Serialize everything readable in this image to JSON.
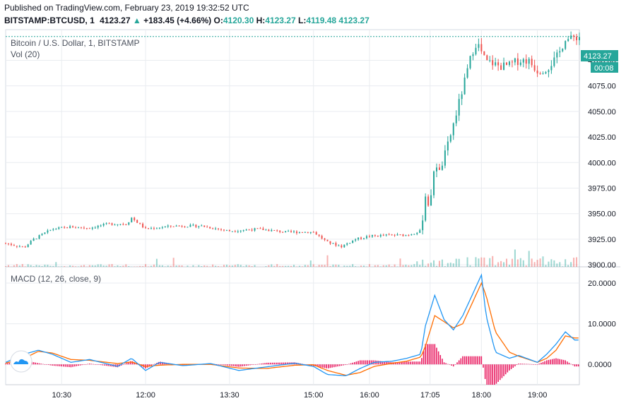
{
  "header": {
    "published": "Published on TradingView.com, February 23, 2019 19:32:52 UTC",
    "symbol": "BITSTAMP:BTCUSD, 1",
    "last": "4123.27",
    "change": "+183.45 (+4.66%)",
    "o_label": "O:",
    "o": "4120.30",
    "h_label": "H:",
    "h": "4123.27",
    "l_label": "L:",
    "l": "4119.48",
    "c_value": "4123.27"
  },
  "colors": {
    "up": "#26a69a",
    "down": "#ef5350",
    "macd": "#2196f3",
    "signal": "#ff6d00",
    "hist": "#e91e63",
    "price_tag": "#26a69a",
    "grid": "#e9ecf0"
  },
  "chart_data": [
    {
      "type": "candlestick",
      "title": "Bitcoin / U.S. Dollar, 1, BITSTAMP",
      "volume_label": "Vol (20)",
      "ylim": [
        3898,
        4130
      ],
      "y_ticks": [
        "4100.00",
        "4075.00",
        "4050.00",
        "4025.00",
        "4000.00",
        "3975.00",
        "3950.00",
        "3925.00",
        "3900.00"
      ],
      "y_tick_values": [
        4100,
        4075,
        4050,
        4025,
        4000,
        3975,
        3950,
        3925,
        3900
      ],
      "last_price": "4123.27",
      "countdown": "00:08",
      "x_ticks": [
        "10:30",
        "12:00",
        "13:30",
        "15:00",
        "16:00",
        "17:05",
        "18:00",
        "19:00"
      ],
      "x_tick_minutes": [
        630,
        720,
        810,
        900,
        960,
        1025,
        1080,
        1140
      ],
      "x_range_minutes": [
        570,
        1185
      ],
      "series": [
        {
          "x": [
            570,
            590,
            600,
            620,
            640,
            660,
            680,
            700,
            705,
            720,
            750,
            780,
            810,
            840,
            870,
            890,
            900,
            915,
            930,
            945,
            960,
            980,
            1000,
            1015,
            1020,
            1025,
            1030,
            1035,
            1045,
            1055,
            1065,
            1070,
            1075,
            1080,
            1085,
            1090,
            1100,
            1110,
            1120,
            1130,
            1140,
            1150,
            1160,
            1165,
            1170,
            1175,
            1180
          ],
          "close": [
            3921,
            3917,
            3925,
            3935,
            3937,
            3936,
            3940,
            3940,
            3946,
            3935,
            3938,
            3938,
            3933,
            3935,
            3932,
            3932,
            3932,
            3922,
            3918,
            3925,
            3928,
            3929,
            3929,
            3933,
            3968,
            3955,
            4003,
            3990,
            4020,
            4055,
            4090,
            4108,
            4118,
            4108,
            4098,
            4098,
            4094,
            4095,
            4100,
            4100,
            4090,
            4092,
            4102,
            4110,
            4122,
            4120,
            4123
          ]
        }
      ]
    },
    {
      "type": "line",
      "title": "MACD (12, 26, close, 9)",
      "ylim": [
        -5,
        24
      ],
      "y_ticks": [
        "20.0000",
        "10.0000",
        "0.0000"
      ],
      "y_tick_values": [
        20,
        10,
        0
      ],
      "series": [
        {
          "name": "MACD",
          "x": [
            570,
            590,
            605,
            620,
            640,
            660,
            690,
            705,
            720,
            735,
            760,
            790,
            820,
            850,
            880,
            900,
            915,
            935,
            950,
            965,
            985,
            1000,
            1015,
            1020,
            1030,
            1040,
            1050,
            1060,
            1070,
            1080,
            1085,
            1095,
            1110,
            1120,
            1140,
            1150,
            1160,
            1170,
            1180
          ],
          "values": [
            0.5,
            2.5,
            3.5,
            2.5,
            0.5,
            1.2,
            -0.5,
            1.5,
            -1.5,
            0.5,
            -0.3,
            0.2,
            -1.5,
            -0.6,
            0.3,
            -0.5,
            -2.5,
            -2.8,
            -1,
            0.5,
            0.8,
            1.5,
            2.5,
            9.5,
            17,
            11,
            8.5,
            12,
            17,
            22,
            12,
            3,
            1.5,
            2.2,
            0.5,
            2.5,
            5,
            8,
            6
          ]
        },
        {
          "name": "Signal",
          "x": [
            570,
            590,
            605,
            620,
            640,
            660,
            690,
            705,
            720,
            735,
            760,
            790,
            820,
            850,
            880,
            900,
            915,
            935,
            950,
            965,
            985,
            1000,
            1015,
            1020,
            1030,
            1040,
            1050,
            1060,
            1070,
            1080,
            1085,
            1095,
            1110,
            1120,
            1140,
            1150,
            1160,
            1170,
            1180
          ],
          "values": [
            0.3,
            1.5,
            3.2,
            2.8,
            1.2,
            1.0,
            0.2,
            0.6,
            -0.5,
            -0.2,
            0.0,
            0.0,
            -0.9,
            -1.0,
            -0.2,
            -0.1,
            -1.5,
            -2.7,
            -2.0,
            -0.5,
            0.3,
            0.8,
            1.8,
            4.5,
            12,
            10.5,
            9,
            10,
            15,
            20,
            17,
            8,
            3,
            2,
            0.5,
            1.5,
            3.5,
            7,
            6.5
          ]
        }
      ]
    }
  ]
}
